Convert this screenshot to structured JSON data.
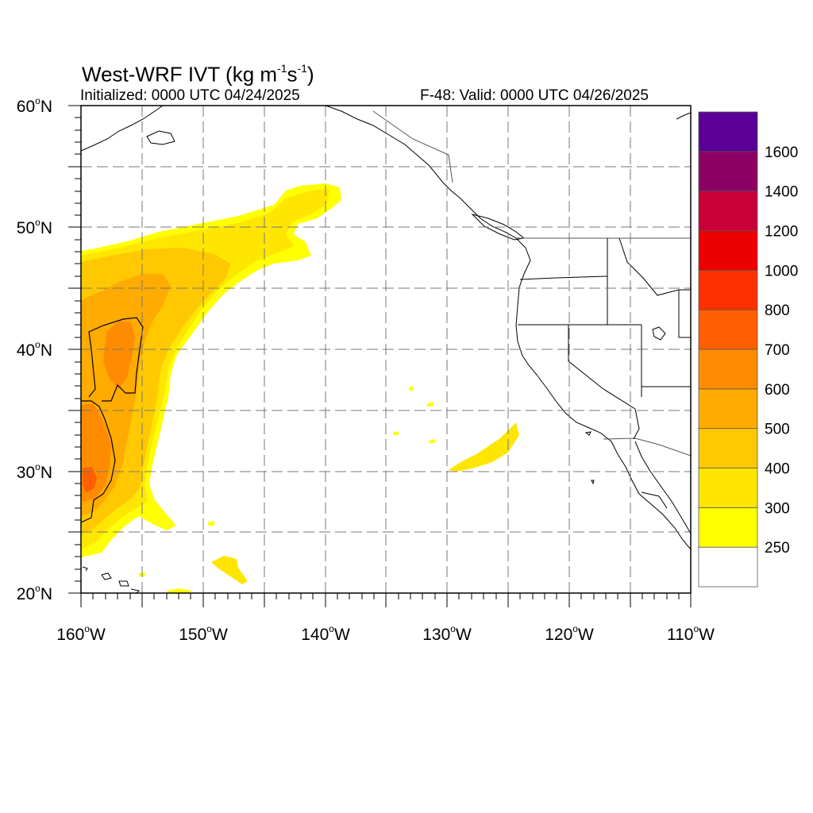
{
  "header": {
    "title_prefix": "West-WRF IVT (kg m",
    "title_exp1": "-1",
    "title_mid": "s",
    "title_exp2": "-1",
    "title_suffix": ")",
    "initialized": "Initialized: 0000 UTC 04/24/2025",
    "valid": "F-48: Valid: 0000 UTC 04/26/2025"
  },
  "axes": {
    "lat_labels": [
      {
        "deg": "60",
        "hemi": "N",
        "value": 60
      },
      {
        "deg": "50",
        "hemi": "N",
        "value": 50
      },
      {
        "deg": "40",
        "hemi": "N",
        "value": 40
      },
      {
        "deg": "30",
        "hemi": "N",
        "value": 30
      },
      {
        "deg": "20",
        "hemi": "N",
        "value": 20
      }
    ],
    "lon_labels": [
      {
        "deg": "160",
        "hemi": "W",
        "value": -160
      },
      {
        "deg": "150",
        "hemi": "W",
        "value": -150
      },
      {
        "deg": "140",
        "hemi": "W",
        "value": -140
      },
      {
        "deg": "130",
        "hemi": "W",
        "value": -130
      },
      {
        "deg": "120",
        "hemi": "W",
        "value": -120
      },
      {
        "deg": "110",
        "hemi": "W",
        "value": -110
      }
    ],
    "lon_range": [
      -160,
      -110
    ],
    "lat_range": [
      20,
      60
    ],
    "gridlines": "dashed, every 5 degrees"
  },
  "colorbar": {
    "levels": [
      250,
      300,
      400,
      500,
      600,
      700,
      800,
      1000,
      1200,
      1400,
      1600
    ],
    "labels": [
      "250",
      "300",
      "400",
      "500",
      "600",
      "700",
      "800",
      "1000",
      "1200",
      "1400",
      "1600"
    ],
    "colors": [
      "#ffffff",
      "#ffff00",
      "#ffe600",
      "#ffc800",
      "#ffab00",
      "#ff8c00",
      "#ff5f00",
      "#ff3000",
      "#ee0000",
      "#c80038",
      "#8c0064",
      "#5a0096"
    ]
  }
}
